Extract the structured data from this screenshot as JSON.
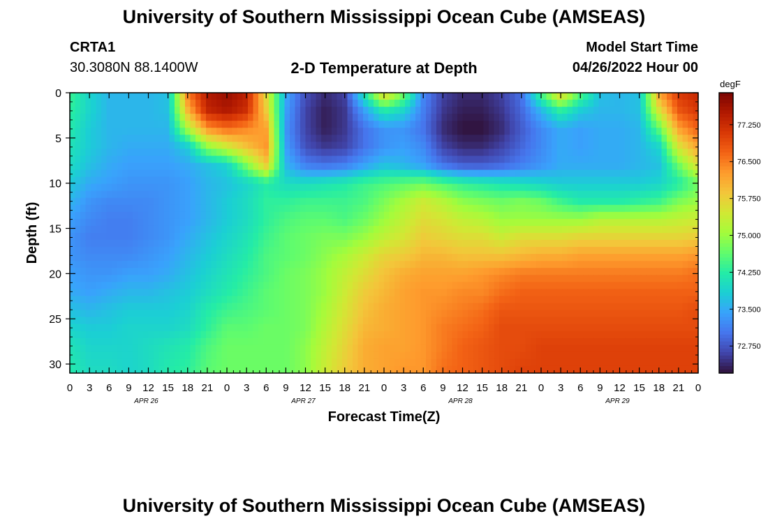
{
  "header": {
    "title": "University of Southern Mississippi Ocean Cube (AMSEAS)",
    "station": "CRTA1",
    "coords": "30.3080N  88.1400W",
    "plot_title": "2-D Temperature at Depth",
    "model_label": "Model Start Time",
    "model_time": "04/26/2022 Hour 00"
  },
  "footer": {
    "title": "University of Southern Mississippi Ocean Cube (AMSEAS)"
  },
  "colors": {
    "background": "#ffffff",
    "palette": [
      "#30123b",
      "#4145ab",
      "#4675ed",
      "#39a2fc",
      "#1bcfd4",
      "#24eca6",
      "#61fc6c",
      "#a4fc3b",
      "#d1e834",
      "#f3c63a",
      "#fe9b2d",
      "#f36315",
      "#d93806",
      "#b11901",
      "#7a0402"
    ]
  },
  "chart_data": {
    "type": "heatmap",
    "title": "2-D Temperature at Depth",
    "xlabel": "Forecast Time(Z)",
    "ylabel": "Depth (ft)",
    "colorbar_unit": "degF",
    "colorbar_ticks": [
      "77.250",
      "76.500",
      "75.750",
      "75.000",
      "74.250",
      "73.500",
      "72.750"
    ],
    "colorbar_values": [
      77.25,
      76.5,
      75.75,
      75.0,
      74.25,
      73.5,
      72.75
    ],
    "color_range": [
      72.2,
      77.9
    ],
    "x_hours": [
      0,
      96
    ],
    "x_tick_labels": [
      "0",
      "3",
      "6",
      "9",
      "12",
      "15",
      "18",
      "21",
      "0",
      "3",
      "6",
      "9",
      "12",
      "15",
      "18",
      "21",
      "0",
      "3",
      "6",
      "9",
      "12",
      "15",
      "18",
      "21",
      "0",
      "3",
      "6",
      "9",
      "12",
      "15",
      "18",
      "21",
      "0"
    ],
    "date_labels": [
      "APR 26",
      "APR 27",
      "APR 28",
      "APR 29"
    ],
    "y_tick_labels": [
      "0",
      "5",
      "10",
      "15",
      "20",
      "25",
      "30"
    ],
    "y_ticks": [
      0,
      5,
      10,
      15,
      20,
      25,
      30
    ],
    "ylim": [
      0,
      31
    ],
    "depths": [
      0,
      2,
      4,
      6,
      8,
      10,
      12,
      14,
      16,
      18,
      20,
      22,
      24,
      26,
      28,
      31
    ],
    "times": [
      0,
      3,
      6,
      9,
      12,
      15,
      18,
      21,
      24,
      27,
      30,
      33,
      36,
      39,
      42,
      45,
      48,
      51,
      54,
      57,
      60,
      63,
      66,
      69,
      72,
      75,
      78,
      81,
      84,
      87,
      90,
      93,
      96
    ],
    "values": [
      [
        74.4,
        73.9,
        73.6,
        73.6,
        73.6,
        73.7,
        76.5,
        77.5,
        77.7,
        77.4,
        75.6,
        73.5,
        72.7,
        72.4,
        72.6,
        74.2,
        75.8,
        74.8,
        73.2,
        72.6,
        72.4,
        72.4,
        72.6,
        73.0,
        74.5,
        75.8,
        74.6,
        73.7,
        73.6,
        73.7,
        76.2,
        77.1,
        77.3
      ],
      [
        74.3,
        73.9,
        73.6,
        73.6,
        73.6,
        73.7,
        76.0,
        77.3,
        77.5,
        77.2,
        75.8,
        73.4,
        72.6,
        72.3,
        72.5,
        73.4,
        74.2,
        73.9,
        73.1,
        72.5,
        72.3,
        72.3,
        72.5,
        72.9,
        73.6,
        74.3,
        73.8,
        73.6,
        73.6,
        73.7,
        75.5,
        76.8,
        77.1
      ],
      [
        74.2,
        73.8,
        73.6,
        73.6,
        73.6,
        73.6,
        75.1,
        76.3,
        76.6,
        76.4,
        76.2,
        73.3,
        72.6,
        72.3,
        72.5,
        73.0,
        73.3,
        73.3,
        73.0,
        72.4,
        72.2,
        72.2,
        72.4,
        72.8,
        73.2,
        73.5,
        73.4,
        73.5,
        73.5,
        73.6,
        74.6,
        76.2,
        76.7
      ],
      [
        74.1,
        73.8,
        73.6,
        73.5,
        73.5,
        73.5,
        73.8,
        74.9,
        75.4,
        75.9,
        76.3,
        73.4,
        72.7,
        72.5,
        72.6,
        73.0,
        73.3,
        73.4,
        73.2,
        72.6,
        72.4,
        72.4,
        72.6,
        72.9,
        73.2,
        73.5,
        73.4,
        73.5,
        73.5,
        73.6,
        73.9,
        75.5,
        76.2
      ],
      [
        74.0,
        73.7,
        73.5,
        73.4,
        73.4,
        73.4,
        73.5,
        73.7,
        73.9,
        74.8,
        75.8,
        73.6,
        73.1,
        73.0,
        73.1,
        73.4,
        73.7,
        73.6,
        73.4,
        73.0,
        72.8,
        72.8,
        72.9,
        73.1,
        73.3,
        73.5,
        73.5,
        73.5,
        73.5,
        73.6,
        73.7,
        74.7,
        75.6
      ],
      [
        73.8,
        73.5,
        73.4,
        73.3,
        73.3,
        73.3,
        73.4,
        73.6,
        73.7,
        73.9,
        74.2,
        74.0,
        74.0,
        74.1,
        74.2,
        74.4,
        74.5,
        74.6,
        74.7,
        74.5,
        74.3,
        74.2,
        74.1,
        74.0,
        73.9,
        73.8,
        73.8,
        73.8,
        73.8,
        73.8,
        73.9,
        74.2,
        74.7
      ],
      [
        73.6,
        73.3,
        73.2,
        73.2,
        73.2,
        73.3,
        73.4,
        73.6,
        73.8,
        74.0,
        74.3,
        74.3,
        74.4,
        74.4,
        74.4,
        74.5,
        74.8,
        75.1,
        75.4,
        75.2,
        74.9,
        74.8,
        74.7,
        74.8,
        74.7,
        74.4,
        74.2,
        74.2,
        74.2,
        74.3,
        74.4,
        74.8,
        75.0
      ],
      [
        73.4,
        73.2,
        73.1,
        73.1,
        73.2,
        73.3,
        73.4,
        73.6,
        73.8,
        74.0,
        74.3,
        74.5,
        74.6,
        74.6,
        74.5,
        74.7,
        75.0,
        75.3,
        75.6,
        75.5,
        75.3,
        75.2,
        75.0,
        75.0,
        75.0,
        75.0,
        75.0,
        75.2,
        75.2,
        75.2,
        75.2,
        75.3,
        75.4
      ],
      [
        73.3,
        73.1,
        73.1,
        73.1,
        73.2,
        73.3,
        73.5,
        73.7,
        73.9,
        74.1,
        74.4,
        74.6,
        74.7,
        74.8,
        74.8,
        75.0,
        75.3,
        75.5,
        75.8,
        75.7,
        75.6,
        75.6,
        75.4,
        75.6,
        75.6,
        75.6,
        75.7,
        75.7,
        75.7,
        75.7,
        75.7,
        75.7,
        75.8
      ],
      [
        73.3,
        73.2,
        73.2,
        73.2,
        73.3,
        73.4,
        73.6,
        73.8,
        74.0,
        74.2,
        74.5,
        74.6,
        74.7,
        74.9,
        75.1,
        75.4,
        75.7,
        75.8,
        76.0,
        76.0,
        75.9,
        75.9,
        75.9,
        76.0,
        76.1,
        76.1,
        76.2,
        76.2,
        76.2,
        76.2,
        76.2,
        76.2,
        76.3
      ],
      [
        73.4,
        73.3,
        73.3,
        73.4,
        73.4,
        73.5,
        73.7,
        73.9,
        74.1,
        74.3,
        74.5,
        74.7,
        74.8,
        75.0,
        75.3,
        75.6,
        75.9,
        76.1,
        76.2,
        76.2,
        76.2,
        76.3,
        76.4,
        76.5,
        76.5,
        76.5,
        76.5,
        76.5,
        76.5,
        76.5,
        76.5,
        76.5,
        76.6
      ],
      [
        73.5,
        73.4,
        73.5,
        73.6,
        73.6,
        73.7,
        73.8,
        74.0,
        74.2,
        74.4,
        74.6,
        74.7,
        74.8,
        75.0,
        75.4,
        75.8,
        76.0,
        76.2,
        76.3,
        76.3,
        76.4,
        76.4,
        76.6,
        76.7,
        76.7,
        76.7,
        76.7,
        76.7,
        76.7,
        76.7,
        76.7,
        76.7,
        76.7
      ],
      [
        73.7,
        73.6,
        73.7,
        73.8,
        73.8,
        73.8,
        73.9,
        74.2,
        74.4,
        74.5,
        74.6,
        74.7,
        74.8,
        75.1,
        75.5,
        75.9,
        76.1,
        76.2,
        76.3,
        76.4,
        76.5,
        76.6,
        76.8,
        76.8,
        76.8,
        76.8,
        76.8,
        76.8,
        76.8,
        76.8,
        76.8,
        76.8,
        76.9
      ],
      [
        73.9,
        73.8,
        73.8,
        73.9,
        73.9,
        73.9,
        74.0,
        74.3,
        74.6,
        74.6,
        74.7,
        74.7,
        74.8,
        75.2,
        75.6,
        76.0,
        76.1,
        76.2,
        76.3,
        76.5,
        76.6,
        76.7,
        76.9,
        76.9,
        76.9,
        76.9,
        76.9,
        76.9,
        76.9,
        76.9,
        76.9,
        76.9,
        76.9
      ],
      [
        74.1,
        73.9,
        73.9,
        73.9,
        74.0,
        74.1,
        74.2,
        74.5,
        74.7,
        74.7,
        74.7,
        74.7,
        74.9,
        75.3,
        75.7,
        76.1,
        76.2,
        76.2,
        76.3,
        76.5,
        76.7,
        76.8,
        76.9,
        76.9,
        77.0,
        77.0,
        77.0,
        77.0,
        77.0,
        77.0,
        77.0,
        77.0,
        77.0
      ],
      [
        74.2,
        74.0,
        74.0,
        73.9,
        74.0,
        74.2,
        74.3,
        74.6,
        74.7,
        74.7,
        74.7,
        74.7,
        74.9,
        75.4,
        75.8,
        76.1,
        76.2,
        76.3,
        76.3,
        76.6,
        76.7,
        76.8,
        76.9,
        77.0,
        77.0,
        77.0,
        77.0,
        77.0,
        77.0,
        77.0,
        77.0,
        77.0,
        77.0
      ]
    ]
  }
}
